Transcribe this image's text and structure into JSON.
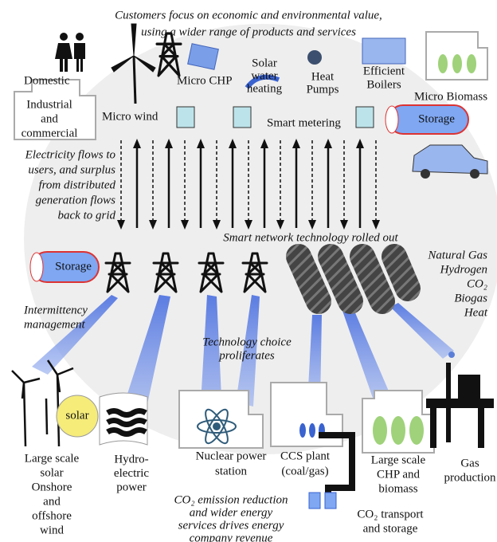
{
  "header": {
    "lines": [
      "Customers focus on economic and environmental value,",
      "using a wider range of products and services"
    ]
  },
  "labels": [
    {
      "lines": [
        "Domestic"
      ]
    },
    {
      "lines": [
        "Industrial",
        "and",
        "commercial"
      ]
    },
    {
      "lines": [
        "Micro wind"
      ]
    },
    {
      "lines": [
        "Micro CHP"
      ]
    },
    {
      "lines": [
        "Solar",
        "water",
        "heating"
      ]
    },
    {
      "lines": [
        "Heat",
        "Pumps"
      ]
    },
    {
      "lines": [
        "Efficient",
        "Boilers"
      ]
    },
    {
      "lines": [
        "Micro Biomass"
      ]
    },
    {
      "lines": [
        "Smart metering"
      ]
    },
    {
      "lines": [
        "Storage"
      ]
    },
    {
      "lines": [
        "Electricity flows to",
        "users, and surplus",
        "from distributed",
        "generation flows",
        "back to grid"
      ]
    },
    {
      "lines": [
        "Smart network technology rolled out"
      ]
    },
    {
      "lines": [
        "Storage"
      ]
    },
    {
      "lines": [
        "Natural Gas",
        "Hydrogen",
        "CO₂",
        "Biogas",
        "Heat"
      ]
    },
    {
      "lines": [
        "Intermittency",
        "management"
      ]
    },
    {
      "lines": [
        "Technology choice",
        "proliferates"
      ]
    },
    {
      "lines": [
        "solar"
      ]
    },
    {
      "lines": [
        "Large scale",
        "solar",
        "Onshore",
        "and",
        "offshore",
        "wind"
      ]
    },
    {
      "lines": [
        "Hydro-",
        "electric",
        "power"
      ]
    },
    {
      "lines": [
        "Nuclear power",
        "station"
      ]
    },
    {
      "lines": [
        "CCS plant",
        "(coal/gas)"
      ]
    },
    {
      "lines": [
        "Large scale",
        "CHP and",
        "biomass"
      ]
    },
    {
      "lines": [
        "Gas",
        "production"
      ]
    },
    {
      "lines": [
        "CO₂ emission reduction",
        "and wider energy",
        "services drives energy",
        "company revenue"
      ]
    },
    {
      "lines": [
        "CO₂ transport",
        "and storage"
      ]
    }
  ]
}
